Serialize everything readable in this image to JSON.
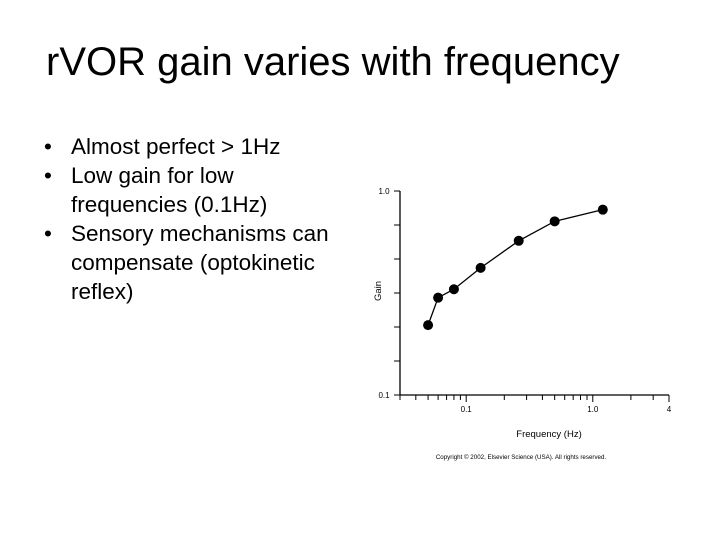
{
  "slide": {
    "title": "r​VOR gain varies with frequency",
    "bullets": [
      {
        "marker": "•",
        "text": "Almost perfect > 1Hz"
      },
      {
        "marker": "•",
        "text": "Low gain for low frequencies (0.1Hz)"
      },
      {
        "marker": "•",
        "text": "Sensory mechanisms can compensate (optokinetic reflex)"
      }
    ]
  },
  "chart_data": {
    "type": "line",
    "title": "",
    "xlabel": "Frequency (Hz)",
    "ylabel": "Gain",
    "x_scale": "log",
    "y_scale": "log",
    "xlim": [
      0.03,
      4
    ],
    "ylim": [
      0.1,
      1.0
    ],
    "x_tick_labels": [
      "0.1",
      "1.0",
      "4"
    ],
    "y_tick_labels": [
      "1.0",
      "0.1"
    ],
    "grid": false,
    "legend": "none",
    "series": [
      {
        "x": [
          0.05,
          0.06,
          0.08,
          0.13,
          0.26,
          0.5,
          1.2
        ],
        "y": [
          0.22,
          0.3,
          0.33,
          0.42,
          0.57,
          0.71,
          0.81
        ]
      }
    ],
    "annotation": "Copyright © 2002, Elsevier Science (USA). All rights reserved."
  }
}
